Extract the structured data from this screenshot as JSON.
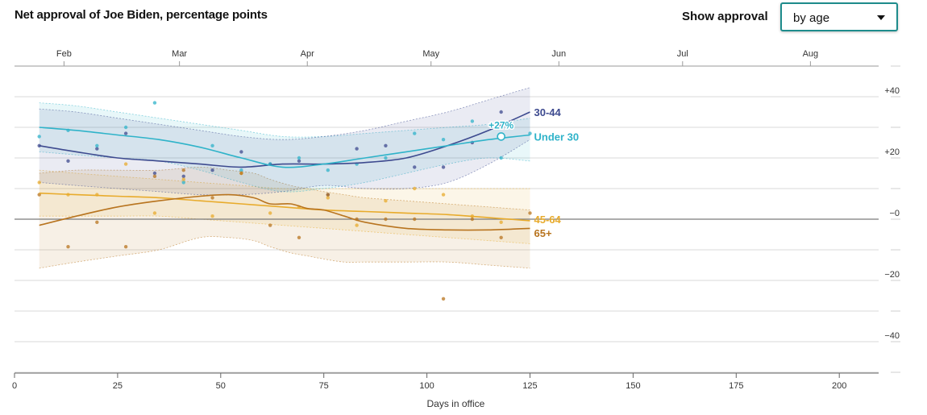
{
  "header": {
    "title": "Net approval of Joe Biden, percentage points",
    "control_label": "Show approval",
    "select_value": "by age",
    "caret_icon": "chevron-down-icon"
  },
  "colors": {
    "under30": "#2fb3c9",
    "a30_44": "#3d4a8f",
    "a45_64": "#e8ab2c",
    "a65": "#b8741f",
    "select_border": "#1e8c8c"
  },
  "chart_data": {
    "type": "line",
    "xlabel": "Days in office",
    "ylabel": "",
    "xlim": [
      0,
      210
    ],
    "ylim": [
      -50,
      50
    ],
    "x_ticks": [
      0,
      25,
      50,
      75,
      100,
      125,
      150,
      175,
      200
    ],
    "y_ticks": [
      {
        "v": 40,
        "label": "+40"
      },
      {
        "v": 20,
        "label": "+20"
      },
      {
        "v": 0,
        "label": "−0"
      },
      {
        "v": -20,
        "label": "−20"
      },
      {
        "v": -40,
        "label": "−40"
      }
    ],
    "month_ticks": [
      {
        "label": "Feb",
        "day": 12
      },
      {
        "label": "Mar",
        "day": 40
      },
      {
        "label": "Apr",
        "day": 71
      },
      {
        "label": "May",
        "day": 101
      },
      {
        "label": "Jun",
        "day": 132
      },
      {
        "label": "Jul",
        "day": 162
      },
      {
        "label": "Aug",
        "day": 193
      }
    ],
    "grid": true,
    "legend": "direct labels at line ends",
    "highlight": {
      "series": "Under 30",
      "x": 118,
      "y": 27,
      "label": "+27%"
    },
    "series": [
      {
        "name": "30-44",
        "key": "a30_44",
        "label_y": 35,
        "x": [
          6,
          15,
          25,
          35,
          45,
          55,
          65,
          75,
          85,
          95,
          105,
          115,
          125
        ],
        "y": [
          24,
          22,
          20,
          19,
          18,
          17,
          18,
          18,
          18.5,
          20,
          24,
          29,
          35
        ],
        "upper": [
          36,
          35,
          33,
          31,
          29,
          27,
          26,
          27,
          29,
          32,
          35,
          39,
          43
        ],
        "lower": [
          12,
          11,
          10,
          9,
          8,
          8,
          9,
          11,
          10,
          10,
          12,
          18,
          26
        ],
        "points_x": [
          6,
          13,
          20,
          27,
          34,
          41,
          48,
          55,
          62,
          69,
          76,
          83,
          90,
          97,
          104,
          111,
          118
        ],
        "points_y": [
          24,
          19,
          23,
          28,
          15,
          14,
          16,
          22,
          18,
          19,
          8,
          23,
          24,
          17,
          17,
          25,
          35
        ]
      },
      {
        "name": "Under 30",
        "key": "under30",
        "label_y": 27,
        "x": [
          6,
          15,
          25,
          35,
          45,
          55,
          65,
          75,
          85,
          95,
          105,
          115,
          125
        ],
        "y": [
          30,
          29,
          27.5,
          26,
          23.5,
          20,
          17,
          18,
          20,
          22,
          24,
          26,
          27.5
        ],
        "upper": [
          38,
          37,
          35,
          33,
          31,
          29,
          27,
          27,
          28,
          29,
          30,
          31,
          33
        ],
        "lower": [
          22,
          21,
          20,
          19,
          16,
          12,
          9,
          10,
          12,
          15,
          18,
          20,
          19
        ],
        "points_x": [
          6,
          13,
          20,
          27,
          34,
          41,
          48,
          55,
          62,
          69,
          76,
          83,
          90,
          97,
          104,
          111,
          118,
          125
        ],
        "points_y": [
          27,
          29,
          24,
          30,
          38,
          12,
          24,
          16,
          18,
          20,
          16,
          18,
          20,
          28,
          26,
          32,
          20,
          28
        ]
      },
      {
        "name": "45-64",
        "key": "a45_64",
        "label_y": 0,
        "x": [
          6,
          15,
          25,
          35,
          45,
          55,
          65,
          75,
          85,
          95,
          105,
          115,
          125
        ],
        "y": [
          8.5,
          8,
          7.5,
          7,
          6,
          5,
          4,
          3,
          2.5,
          2,
          1.5,
          0.5,
          -0.5
        ],
        "upper": [
          16,
          15,
          14,
          13,
          12,
          11,
          10,
          10,
          10,
          10,
          10,
          10,
          10
        ],
        "lower": [
          1,
          1,
          1,
          1,
          0,
          -1,
          -2,
          -3,
          -4,
          -5,
          -6,
          -7,
          -8
        ],
        "points_x": [
          6,
          13,
          20,
          27,
          34,
          41,
          48,
          55,
          62,
          69,
          76,
          83,
          90,
          97,
          104,
          111,
          118
        ],
        "points_y": [
          12,
          8,
          8,
          18,
          2,
          13,
          1,
          15,
          2,
          4,
          7,
          -2,
          6,
          10,
          8,
          1,
          -1
        ]
      },
      {
        "name": "65+",
        "key": "a65",
        "label_y": -4.5,
        "x": [
          6,
          15,
          25,
          35,
          45,
          52,
          58,
          62,
          67,
          71,
          75,
          80,
          85,
          95,
          105,
          115,
          125
        ],
        "y": [
          -2,
          1,
          4,
          6,
          7.5,
          8,
          7,
          5,
          5,
          3.5,
          3,
          1,
          -1,
          -3,
          -3.5,
          -3.5,
          -3
        ],
        "upper": [
          15,
          16,
          16,
          16,
          17,
          16,
          15,
          13,
          11,
          10,
          9,
          8,
          7,
          6,
          5,
          4,
          3
        ],
        "lower": [
          -16,
          -14,
          -12,
          -10,
          -6,
          -6,
          -7,
          -9,
          -11,
          -12,
          -13,
          -14,
          -14,
          -14,
          -14,
          -15,
          -16
        ],
        "points_x": [
          6,
          13,
          20,
          27,
          34,
          41,
          48,
          55,
          62,
          69,
          76,
          83,
          90,
          97,
          104,
          111,
          118,
          125
        ],
        "points_y": [
          8,
          -9,
          -1,
          -9,
          14,
          16,
          7,
          15,
          -2,
          -6,
          8,
          0,
          0,
          0,
          -26,
          0,
          -6,
          2
        ]
      }
    ]
  }
}
